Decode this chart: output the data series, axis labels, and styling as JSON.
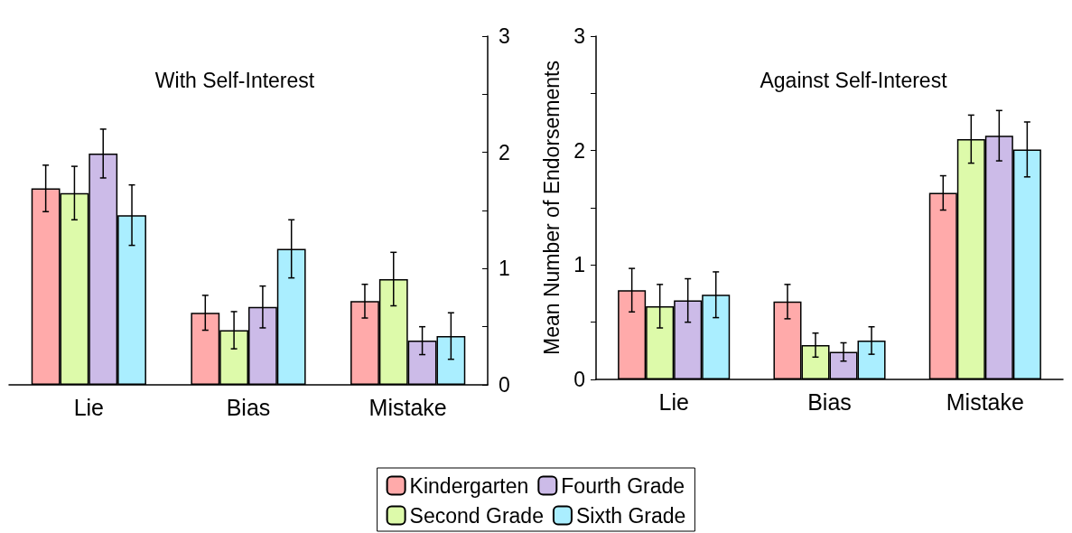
{
  "chart_data": [
    {
      "type": "bar",
      "title": "With Self-Interest",
      "categories": [
        "Lie",
        "Bias",
        "Mistake"
      ],
      "series": [
        {
          "name": "Kindergarten",
          "color": "#ffaaaa",
          "values": [
            1.69,
            0.62,
            0.72
          ],
          "errors": [
            0.2,
            0.15,
            0.145
          ]
        },
        {
          "name": "Second Grade",
          "color": "#ddfaaa",
          "values": [
            1.65,
            0.47,
            0.91
          ],
          "errors": [
            0.23,
            0.16,
            0.23
          ]
        },
        {
          "name": "Fourth Grade",
          "color": "#ccbbe8",
          "values": [
            1.99,
            0.67,
            0.38
          ],
          "errors": [
            0.21,
            0.18,
            0.12
          ]
        },
        {
          "name": "Sixth Grade",
          "color": "#aaeeff",
          "values": [
            1.46,
            1.17,
            0.42
          ],
          "errors": [
            0.26,
            0.25,
            0.2
          ]
        }
      ],
      "ylim": [
        0,
        3
      ],
      "yticks": [
        0,
        {
          "value": 0.5,
          "label": null
        },
        1,
        {
          "value": 1.5,
          "label": null
        },
        2,
        {
          "value": 2.5,
          "label": null
        },
        3
      ],
      "grid": false,
      "legend": "bottom"
    },
    {
      "type": "bar",
      "title": "Against Self-Interest",
      "ylabel": "Mean Number of Endorsements",
      "categories": [
        "Lie",
        "Bias",
        "Mistake"
      ],
      "series": [
        {
          "color": "#ffaaaa",
          "values": [
            0.78,
            0.68,
            1.63
          ],
          "errors": [
            0.19,
            0.15,
            0.15
          ]
        },
        {
          "color": "#ddfaaa",
          "values": [
            0.64,
            0.3,
            2.1
          ],
          "errors": [
            0.19,
            0.105,
            0.21
          ]
        },
        {
          "color": "#ccbbe8",
          "values": [
            0.69,
            0.24,
            2.13
          ],
          "errors": [
            0.19,
            0.08,
            0.22
          ]
        },
        {
          "color": "#aaeeff",
          "values": [
            0.74,
            0.34,
            2.01
          ],
          "errors": [
            0.2,
            0.12,
            0.24
          ]
        }
      ],
      "ylim": [
        0,
        3
      ],
      "yticks": [
        0,
        {
          "value": 0.5,
          "label": null
        },
        1,
        {
          "value": 1.5,
          "label": null
        },
        2,
        {
          "value": 2.5,
          "label": null
        },
        3
      ],
      "grid": false
    }
  ]
}
